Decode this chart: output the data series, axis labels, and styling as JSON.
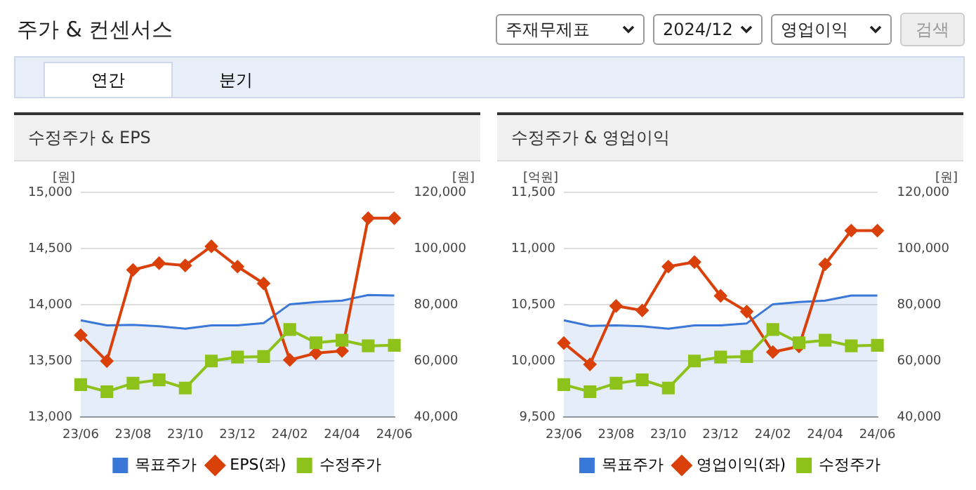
{
  "chart_data": [
    {
      "type": "other",
      "title": "주가 & 컨센서스",
      "annotations": [
        "주재무제표",
        "2024/12",
        "영업이익",
        "검색",
        "연간",
        "분기"
      ]
    },
    {
      "type": "line",
      "title": "수정주가 & EPS",
      "ylabel": "[원]",
      "y2label": "[원]",
      "categories": [
        "23/06",
        null,
        "23/08",
        null,
        "23/10",
        null,
        "23/12",
        null,
        "24/02",
        null,
        "24/04",
        null,
        "24/06"
      ],
      "ylim": [
        13000,
        15000
      ],
      "yticks": [
        {
          "value": 13000,
          "label": "13,000"
        },
        {
          "value": 13500,
          "label": "13,500"
        },
        {
          "value": 14000,
          "label": "14,000"
        },
        {
          "value": 14500,
          "label": "14,500"
        },
        {
          "value": 15000,
          "label": "15,000"
        }
      ],
      "y2lim": [
        40000,
        120000
      ],
      "y2ticks": [
        {
          "value": 40000,
          "label": "40,000"
        },
        {
          "value": 60000,
          "label": "60,000"
        },
        {
          "value": 80000,
          "label": "80,000"
        },
        {
          "value": 100000,
          "label": "100,000"
        },
        {
          "value": 120000,
          "label": "120,000"
        }
      ],
      "grid": "y",
      "legend": "bottom",
      "series": [
        {
          "name": "목표주가",
          "type": "area",
          "axis": "y2",
          "color": "#3a78d8",
          "marker": "none",
          "values": [
            74500,
            72700,
            72900,
            72400,
            71500,
            72700,
            72700,
            73500,
            80200,
            81000,
            81500,
            83500,
            83300
          ]
        },
        {
          "name": "EPS(좌)",
          "type": "line",
          "color": "#d9400a",
          "marker": "diamond",
          "values": [
            13730,
            13500,
            14310,
            14370,
            14350,
            14520,
            14340,
            14190,
            13510,
            13570,
            13590,
            14770,
            14770
          ]
        },
        {
          "name": "수정주가",
          "type": "line",
          "axis": "y2",
          "color": "#8cc21a",
          "marker": "square",
          "values": [
            51600,
            49100,
            52100,
            53300,
            50400,
            60000,
            61400,
            61600,
            71200,
            66500,
            67400,
            65400,
            65600
          ]
        }
      ]
    },
    {
      "type": "line",
      "title": "수정주가 & 영업이익",
      "ylabel": "[억원]",
      "y2label": "[원]",
      "categories": [
        "23/06",
        null,
        "23/08",
        null,
        "23/10",
        null,
        "23/12",
        null,
        "24/02",
        null,
        "24/04",
        null,
        "24/06"
      ],
      "ylim": [
        9500,
        11500
      ],
      "yticks": [
        {
          "value": 9500,
          "label": "9,500"
        },
        {
          "value": 10000,
          "label": "10,000"
        },
        {
          "value": 10500,
          "label": "10,500"
        },
        {
          "value": 11000,
          "label": "11,000"
        },
        {
          "value": 11500,
          "label": "11,500"
        }
      ],
      "y2lim": [
        40000,
        120000
      ],
      "y2ticks": [
        {
          "value": 40000,
          "label": "40,000"
        },
        {
          "value": 60000,
          "label": "60,000"
        },
        {
          "value": 80000,
          "label": "80,000"
        },
        {
          "value": 100000,
          "label": "100,000"
        },
        {
          "value": 120000,
          "label": "120,000"
        }
      ],
      "grid": "y",
      "legend": "bottom",
      "series": [
        {
          "name": "목표주가",
          "type": "area",
          "axis": "y2",
          "color": "#3a78d8",
          "marker": "none",
          "values": [
            74500,
            72500,
            72700,
            72400,
            71500,
            72700,
            72700,
            73400,
            80200,
            81000,
            81500,
            83300,
            83300
          ]
        },
        {
          "name": "영업이익(좌)",
          "type": "line",
          "color": "#d9400a",
          "marker": "diamond",
          "values": [
            10160,
            9970,
            10490,
            10450,
            10840,
            10880,
            10580,
            10440,
            10080,
            10130,
            10860,
            11160,
            11160
          ]
        },
        {
          "name": "수정주가",
          "type": "line",
          "axis": "y2",
          "color": "#8cc21a",
          "marker": "square",
          "values": [
            51600,
            49100,
            52100,
            53300,
            50400,
            60000,
            61400,
            61600,
            71200,
            66500,
            67400,
            65400,
            65600
          ]
        }
      ]
    }
  ]
}
